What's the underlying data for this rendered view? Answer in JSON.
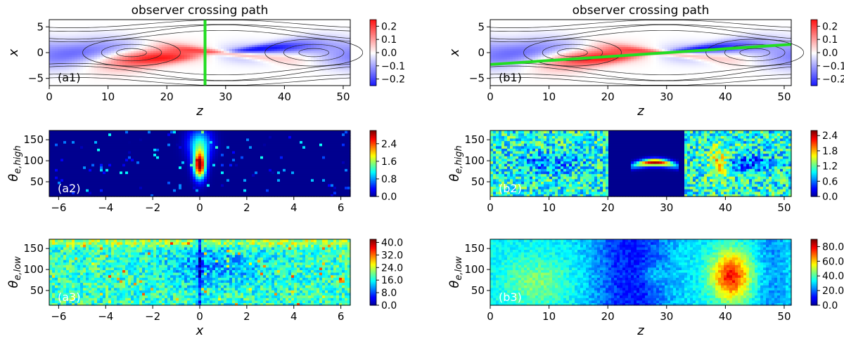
{
  "colors": {
    "accent_path": "#22dd22",
    "frame": "#000000",
    "background": "#ffffff"
  },
  "chart_data": [
    {
      "id": "a1",
      "type": "heatmap",
      "colormap": "bwr",
      "title": "observer crossing path",
      "panel_label": "(a1)",
      "xlabel": "z",
      "ylabel": "x",
      "xlim": [
        0,
        51.2
      ],
      "ylim": [
        -6.4,
        6.4
      ],
      "xticks": [
        0,
        10,
        20,
        30,
        40,
        50
      ],
      "xtick_labels": [
        "0",
        "10",
        "20",
        "30",
        "40",
        "50"
      ],
      "yticks": [
        5,
        0,
        -5
      ],
      "ytick_labels": [
        "5",
        "0",
        "−5"
      ],
      "clim": [
        -0.25,
        0.25
      ],
      "cbar_ticks": [
        0.2,
        0.1,
        0.0,
        -0.1,
        -0.2
      ],
      "cbar_labels": [
        "0.2",
        "0.1",
        "0.0",
        "−0.1",
        "−0.2"
      ],
      "field": "current_sheet",
      "path": {
        "z1": 26.5,
        "x1": -6.4,
        "z2": 26.5,
        "x2": 6.4
      }
    },
    {
      "id": "b1",
      "type": "heatmap",
      "colormap": "bwr",
      "title": "observer crossing path",
      "panel_label": "(b1)",
      "xlabel": "z",
      "ylabel": "x",
      "xlim": [
        0,
        51.2
      ],
      "ylim": [
        -6.4,
        6.4
      ],
      "xticks": [
        0,
        10,
        20,
        30,
        40,
        50
      ],
      "xtick_labels": [
        "0",
        "10",
        "20",
        "30",
        "40",
        "50"
      ],
      "yticks": [
        5,
        0,
        -5
      ],
      "ytick_labels": [
        "5",
        "0",
        "−5"
      ],
      "clim": [
        -0.25,
        0.25
      ],
      "cbar_ticks": [
        0.2,
        0.1,
        0.0,
        -0.1,
        -0.2
      ],
      "cbar_labels": [
        "0.2",
        "0.1",
        "0.0",
        "−0.1",
        "−0.2"
      ],
      "field": "current_sheet",
      "path": {
        "z1": 0,
        "x1": -2.3,
        "z2": 51.2,
        "x2": 1.6
      }
    },
    {
      "id": "a2",
      "type": "heatmap",
      "colormap": "jet",
      "panel_label": "(a2)",
      "xlabel": "",
      "ylabel": "θe,high",
      "ylabel_main": "θ",
      "ylabel_sub": "e,high",
      "xlim": [
        -6.4,
        6.4
      ],
      "ylim": [
        15,
        172
      ],
      "xticks": [
        -6,
        -4,
        -2,
        0,
        2,
        4,
        6
      ],
      "xtick_labels": [
        "−6",
        "−4",
        "−2",
        "0",
        "2",
        "4",
        "6"
      ],
      "yticks": [
        150,
        100,
        50
      ],
      "ytick_labels": [
        "150",
        "100",
        "50"
      ],
      "clim": [
        0,
        3.0
      ],
      "cbar_ticks": [
        2.4,
        1.6,
        0.8,
        0.0
      ],
      "cbar_labels": [
        "2.4",
        "1.6",
        "0.8",
        "0.0"
      ],
      "field": "high_energy_crossing",
      "peak": {
        "x": 0.0,
        "theta": 90,
        "value": 3.0
      }
    },
    {
      "id": "b2",
      "type": "heatmap",
      "colormap": "jet",
      "panel_label": "(b2)",
      "xlabel": "",
      "ylabel": "θe,high",
      "ylabel_main": "θ",
      "ylabel_sub": "e,high",
      "xlim": [
        0,
        51.2
      ],
      "ylim": [
        15,
        172
      ],
      "xticks": [
        0,
        10,
        20,
        30,
        40,
        50
      ],
      "xtick_labels": [
        "0",
        "10",
        "20",
        "30",
        "40",
        "50"
      ],
      "yticks": [
        150,
        100,
        50
      ],
      "ytick_labels": [
        "150",
        "100",
        "50"
      ],
      "clim": [
        0,
        2.6
      ],
      "cbar_ticks": [
        2.4,
        1.8,
        1.2,
        0.6,
        0.0
      ],
      "cbar_labels": [
        "2.4",
        "1.8",
        "1.2",
        "0.6",
        "0.0"
      ],
      "field": "high_energy_oblique",
      "peak": {
        "z": 28,
        "theta": 85,
        "value": 2.5
      }
    },
    {
      "id": "a3",
      "type": "heatmap",
      "colormap": "jet",
      "panel_label": "(a3)",
      "xlabel": "x",
      "ylabel": "θe,low",
      "ylabel_main": "θ",
      "ylabel_sub": "e,low",
      "xlim": [
        -6.4,
        6.4
      ],
      "ylim": [
        15,
        172
      ],
      "xticks": [
        -6,
        -4,
        -2,
        0,
        2,
        4,
        6
      ],
      "xtick_labels": [
        "−6",
        "−4",
        "−2",
        "0",
        "2",
        "4",
        "6"
      ],
      "yticks": [
        150,
        100,
        50
      ],
      "ytick_labels": [
        "150",
        "100",
        "50"
      ],
      "clim": [
        0,
        42
      ],
      "cbar_ticks": [
        40.0,
        32.0,
        24.0,
        16.0,
        8.0,
        0.0
      ],
      "cbar_labels": [
        "40.0",
        "32.0",
        "24.0",
        "16.0",
        "8.0",
        "0.0"
      ],
      "field": "low_energy_crossing"
    },
    {
      "id": "b3",
      "type": "heatmap",
      "colormap": "jet",
      "panel_label": "(b3)",
      "xlabel": "z",
      "ylabel": "θe,low",
      "ylabel_main": "θ",
      "ylabel_sub": "e,low",
      "xlim": [
        0,
        51.2
      ],
      "ylim": [
        15,
        172
      ],
      "xticks": [
        0,
        10,
        20,
        30,
        40,
        50
      ],
      "xtick_labels": [
        "0",
        "10",
        "20",
        "30",
        "40",
        "50"
      ],
      "yticks": [
        150,
        100,
        50
      ],
      "ytick_labels": [
        "150",
        "100",
        "50"
      ],
      "clim": [
        0,
        90
      ],
      "cbar_ticks": [
        80.0,
        60.0,
        40.0,
        20.0,
        0.0
      ],
      "cbar_labels": [
        "80.0",
        "60.0",
        "40.0",
        "20.0",
        "0.0"
      ],
      "field": "low_energy_oblique",
      "peak": {
        "z": 40,
        "theta": 80,
        "value": 85
      }
    }
  ]
}
